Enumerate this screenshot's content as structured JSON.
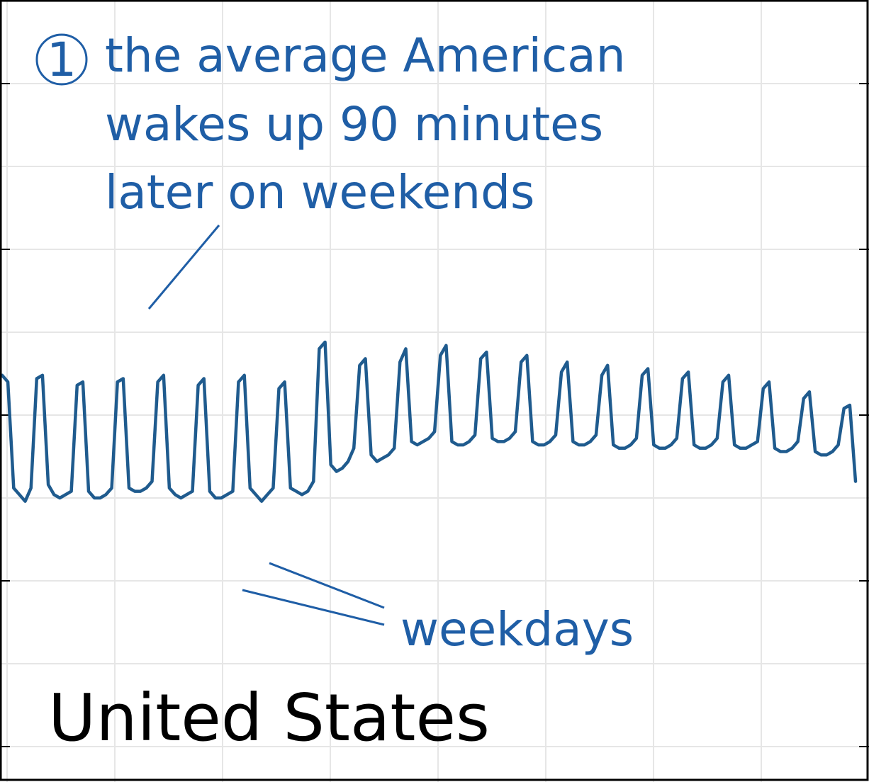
{
  "colors": {
    "line": "#1f5b8e",
    "annotation": "#1f5ea6",
    "label": "#000000",
    "grid": "#e6e6e6",
    "frame": "#000000"
  },
  "chart_data": {
    "type": "line",
    "title": "",
    "xlabel": "",
    "ylabel": "",
    "grid": true,
    "ylim": [
      0,
      1
    ],
    "series": [
      {
        "values": [
          0.62,
          0.6,
          0.28,
          0.26,
          0.24,
          0.28,
          0.61,
          0.62,
          0.29,
          0.26,
          0.25,
          0.26,
          0.27,
          0.59,
          0.6,
          0.27,
          0.25,
          0.25,
          0.26,
          0.28,
          0.6,
          0.61,
          0.28,
          0.27,
          0.27,
          0.28,
          0.3,
          0.6,
          0.62,
          0.28,
          0.26,
          0.25,
          0.26,
          0.27,
          0.59,
          0.61,
          0.27,
          0.25,
          0.25,
          0.26,
          0.27,
          0.6,
          0.62,
          0.28,
          0.26,
          0.24,
          0.26,
          0.28,
          0.58,
          0.6,
          0.28,
          0.27,
          0.26,
          0.27,
          0.3,
          0.7,
          0.72,
          0.35,
          0.33,
          0.34,
          0.36,
          0.4,
          0.65,
          0.67,
          0.38,
          0.36,
          0.37,
          0.38,
          0.4,
          0.66,
          0.7,
          0.42,
          0.41,
          0.42,
          0.43,
          0.45,
          0.68,
          0.71,
          0.42,
          0.41,
          0.41,
          0.42,
          0.44,
          0.67,
          0.69,
          0.43,
          0.42,
          0.42,
          0.43,
          0.45,
          0.66,
          0.68,
          0.42,
          0.41,
          0.41,
          0.42,
          0.44,
          0.63,
          0.66,
          0.42,
          0.41,
          0.41,
          0.42,
          0.44,
          0.62,
          0.65,
          0.41,
          0.4,
          0.4,
          0.41,
          0.43,
          0.62,
          0.64,
          0.41,
          0.4,
          0.4,
          0.41,
          0.43,
          0.61,
          0.63,
          0.41,
          0.4,
          0.4,
          0.41,
          0.43,
          0.6,
          0.62,
          0.41,
          0.4,
          0.4,
          0.41,
          0.42,
          0.58,
          0.6,
          0.4,
          0.39,
          0.39,
          0.4,
          0.42,
          0.55,
          0.57,
          0.39,
          0.38,
          0.38,
          0.39,
          0.41,
          0.52,
          0.53,
          0.3
        ]
      }
    ],
    "annotations": [
      {
        "marker": "①",
        "lines": [
          "the average American",
          "wakes up 90 minutes",
          "later on weekends"
        ]
      },
      {
        "text": "weekdays"
      }
    ],
    "region_label": "United States"
  }
}
